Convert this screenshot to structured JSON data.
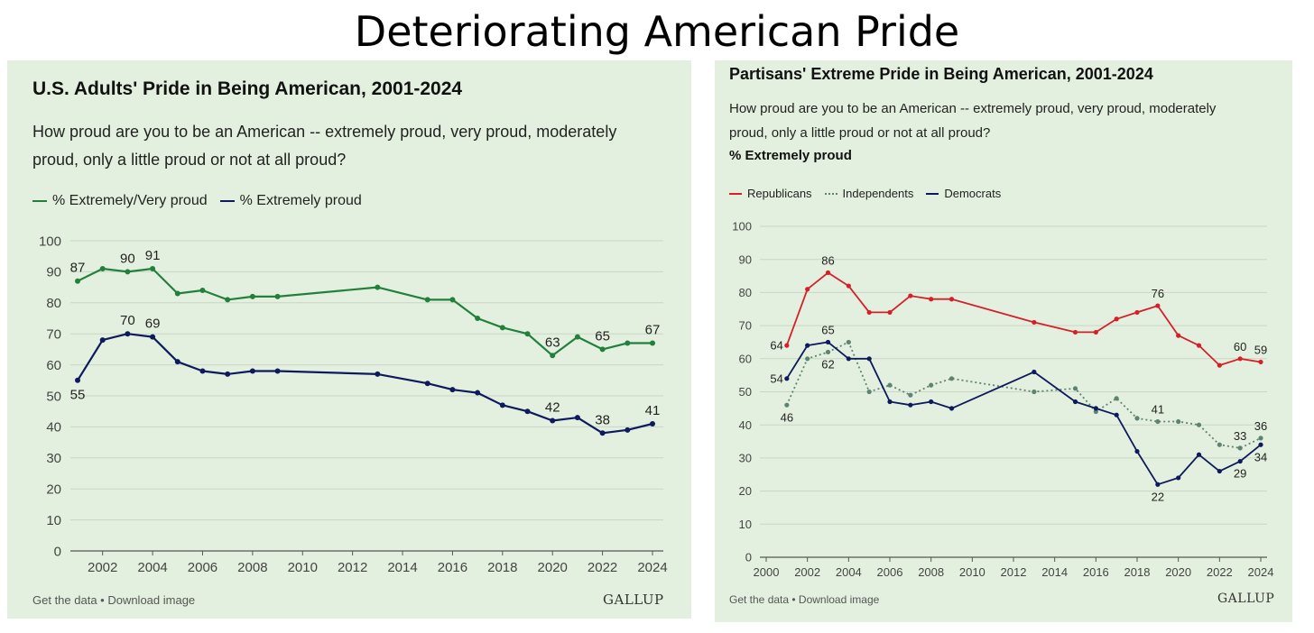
{
  "page_title": "Deteriorating American Pride",
  "left": {
    "title": "U.S. Adults' Pride in Being American, 2001-2024",
    "subtitle_line1": "How proud are you to be an American -- extremely proud, very proud, moderately",
    "subtitle_line2": "proud, only a little proud or not at all proud?",
    "legend": [
      "% Extremely/Very proud",
      "% Extremely proud"
    ],
    "footer": "Get the data • Download image",
    "logo": "GALLUP"
  },
  "right": {
    "title": "Partisans' Extreme Pride in Being American, 2001-2024",
    "subtitle_line1": "How proud are you to be an American -- extremely proud, very proud, moderately",
    "subtitle_line2": "proud, only a little proud or not at all proud?",
    "ylabel": "% Extremely proud",
    "legend": [
      "Republicans",
      "Independents",
      "Democrats"
    ],
    "footer": "Get the data • Download image",
    "logo": "GALLUP"
  },
  "colors": {
    "green": "#22803c",
    "navy": "#0d1a5c",
    "red": "#d5202a",
    "teal": "#5d8373",
    "grid": "#c8d6c3"
  },
  "chart_data": [
    {
      "type": "line",
      "title": "U.S. Adults' Pride in Being American, 2001-2024",
      "xlim": [
        2001,
        2024
      ],
      "ylim": [
        0,
        100
      ],
      "x_ticks": [
        2002,
        2004,
        2006,
        2008,
        2010,
        2012,
        2014,
        2016,
        2018,
        2020,
        2022,
        2024
      ],
      "y_ticks": [
        0,
        10,
        20,
        30,
        40,
        50,
        60,
        70,
        80,
        90,
        100
      ],
      "grid": true,
      "legend_position": "top-left",
      "series": [
        {
          "name": "% Extremely/Very proud",
          "color": "#22803c",
          "points": [
            [
              2001,
              87
            ],
            [
              2002,
              91
            ],
            [
              2003,
              90
            ],
            [
              2004,
              91
            ],
            [
              2005,
              83
            ],
            [
              2006,
              84
            ],
            [
              2007,
              81
            ],
            [
              2008,
              82
            ],
            [
              2009,
              82
            ],
            [
              2013,
              85
            ],
            [
              2015,
              81
            ],
            [
              2016,
              81
            ],
            [
              2017,
              75
            ],
            [
              2018,
              72
            ],
            [
              2019,
              70
            ],
            [
              2020,
              63
            ],
            [
              2021,
              69
            ],
            [
              2022,
              65
            ],
            [
              2023,
              67
            ],
            [
              2024,
              67
            ]
          ],
          "labels": [
            {
              "x": 2001,
              "text": "87",
              "pos": "above"
            },
            {
              "x": 2003,
              "text": "90",
              "pos": "above"
            },
            {
              "x": 2004,
              "text": "91",
              "pos": "above"
            },
            {
              "x": 2020,
              "text": "63",
              "pos": "above"
            },
            {
              "x": 2022,
              "text": "65",
              "pos": "above"
            },
            {
              "x": 2024,
              "text": "67",
              "pos": "above"
            }
          ]
        },
        {
          "name": "% Extremely proud",
          "color": "#0d1a5c",
          "points": [
            [
              2001,
              55
            ],
            [
              2002,
              68
            ],
            [
              2003,
              70
            ],
            [
              2004,
              69
            ],
            [
              2005,
              61
            ],
            [
              2006,
              58
            ],
            [
              2007,
              57
            ],
            [
              2008,
              58
            ],
            [
              2009,
              58
            ],
            [
              2013,
              57
            ],
            [
              2015,
              54
            ],
            [
              2016,
              52
            ],
            [
              2017,
              51
            ],
            [
              2018,
              47
            ],
            [
              2019,
              45
            ],
            [
              2020,
              42
            ],
            [
              2021,
              43
            ],
            [
              2022,
              38
            ],
            [
              2023,
              39
            ],
            [
              2024,
              41
            ]
          ],
          "labels": [
            {
              "x": 2001,
              "text": "55",
              "pos": "below"
            },
            {
              "x": 2003,
              "text": "70",
              "pos": "above"
            },
            {
              "x": 2004,
              "text": "69",
              "pos": "above"
            },
            {
              "x": 2020,
              "text": "42",
              "pos": "above"
            },
            {
              "x": 2022,
              "text": "38",
              "pos": "above"
            },
            {
              "x": 2024,
              "text": "41",
              "pos": "above"
            }
          ]
        }
      ]
    },
    {
      "type": "line",
      "title": "Partisans' Extreme Pride in Being American, 2001-2024",
      "ylabel": "% Extremely proud",
      "xlim": [
        2000,
        2024
      ],
      "ylim": [
        0,
        100
      ],
      "x_ticks": [
        2000,
        2002,
        2004,
        2006,
        2008,
        2010,
        2012,
        2014,
        2016,
        2018,
        2020,
        2022,
        2024
      ],
      "y_ticks": [
        0,
        10,
        20,
        30,
        40,
        50,
        60,
        70,
        80,
        90,
        100
      ],
      "grid": true,
      "legend_position": "top-left",
      "series": [
        {
          "name": "Republicans",
          "color": "#d5202a",
          "dashed": false,
          "points": [
            [
              2001,
              64
            ],
            [
              2002,
              81
            ],
            [
              2003,
              86
            ],
            [
              2004,
              82
            ],
            [
              2005,
              74
            ],
            [
              2006,
              74
            ],
            [
              2007,
              79
            ],
            [
              2008,
              78
            ],
            [
              2009,
              78
            ],
            [
              2013,
              71
            ],
            [
              2015,
              68
            ],
            [
              2016,
              68
            ],
            [
              2017,
              72
            ],
            [
              2018,
              74
            ],
            [
              2019,
              76
            ],
            [
              2020,
              67
            ],
            [
              2021,
              64
            ],
            [
              2022,
              58
            ],
            [
              2023,
              60
            ],
            [
              2024,
              59
            ]
          ],
          "labels": [
            {
              "x": 2001,
              "text": "64",
              "pos": "left"
            },
            {
              "x": 2003,
              "text": "86",
              "pos": "above"
            },
            {
              "x": 2019,
              "text": "76",
              "pos": "above"
            },
            {
              "x": 2023,
              "text": "60",
              "pos": "above"
            },
            {
              "x": 2024,
              "text": "59",
              "pos": "above"
            }
          ]
        },
        {
          "name": "Independents",
          "color": "#5d8373",
          "dashed": true,
          "points": [
            [
              2001,
              46
            ],
            [
              2002,
              60
            ],
            [
              2003,
              62
            ],
            [
              2004,
              65
            ],
            [
              2005,
              50
            ],
            [
              2006,
              52
            ],
            [
              2007,
              49
            ],
            [
              2008,
              52
            ],
            [
              2009,
              54
            ],
            [
              2013,
              50
            ],
            [
              2015,
              51
            ],
            [
              2016,
              44
            ],
            [
              2017,
              48
            ],
            [
              2018,
              42
            ],
            [
              2019,
              41
            ],
            [
              2020,
              41
            ],
            [
              2021,
              40
            ],
            [
              2022,
              34
            ],
            [
              2023,
              33
            ],
            [
              2024,
              36
            ]
          ],
          "labels": [
            {
              "x": 2001,
              "text": "46",
              "pos": "below"
            },
            {
              "x": 2003,
              "text": "62",
              "pos": "below"
            },
            {
              "x": 2019,
              "text": "41",
              "pos": "above"
            },
            {
              "x": 2023,
              "text": "33",
              "pos": "above"
            },
            {
              "x": 2024,
              "text": "36",
              "pos": "above"
            }
          ]
        },
        {
          "name": "Democrats",
          "color": "#0d1a5c",
          "dashed": false,
          "points": [
            [
              2001,
              54
            ],
            [
              2002,
              64
            ],
            [
              2003,
              65
            ],
            [
              2004,
              60
            ],
            [
              2005,
              60
            ],
            [
              2006,
              47
            ],
            [
              2007,
              46
            ],
            [
              2008,
              47
            ],
            [
              2009,
              45
            ],
            [
              2013,
              56
            ],
            [
              2015,
              47
            ],
            [
              2016,
              45
            ],
            [
              2017,
              43
            ],
            [
              2018,
              32
            ],
            [
              2019,
              22
            ],
            [
              2020,
              24
            ],
            [
              2021,
              31
            ],
            [
              2022,
              26
            ],
            [
              2023,
              29
            ],
            [
              2024,
              34
            ]
          ],
          "labels": [
            {
              "x": 2001,
              "text": "54",
              "pos": "left"
            },
            {
              "x": 2003,
              "text": "65",
              "pos": "above"
            },
            {
              "x": 2019,
              "text": "22",
              "pos": "below"
            },
            {
              "x": 2023,
              "text": "29",
              "pos": "below"
            },
            {
              "x": 2024,
              "text": "34",
              "pos": "below"
            }
          ]
        }
      ]
    }
  ]
}
